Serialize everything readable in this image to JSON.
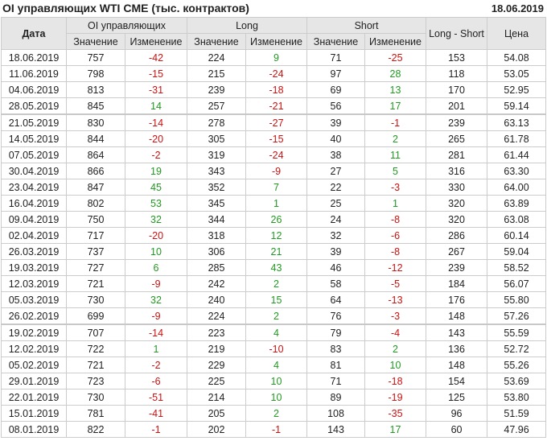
{
  "title": "OI управляющих WTI CME (тыс. контрактов)",
  "report_date": "18.06.2019",
  "colors": {
    "negative": "#cc1111",
    "positive": "#229922"
  },
  "headers": {
    "date": "Дата",
    "oi": "OI управляющих",
    "long": "Long",
    "short": "Short",
    "long_short": "Long - Short",
    "price": "Цена",
    "value": "Значение",
    "change": "Изменение"
  },
  "rows": [
    [
      "18.06.2019",
      "757",
      "-42",
      "224",
      "9",
      "71",
      "-25",
      "153",
      "54.08"
    ],
    [
      "11.06.2019",
      "798",
      "-15",
      "215",
      "-24",
      "97",
      "28",
      "118",
      "53.05"
    ],
    [
      "04.06.2019",
      "813",
      "-31",
      "239",
      "-18",
      "69",
      "13",
      "170",
      "52.95"
    ],
    [
      "28.05.2019",
      "845",
      "14",
      "257",
      "-21",
      "56",
      "17",
      "201",
      "59.14"
    ],
    [
      "21.05.2019",
      "830",
      "-14",
      "278",
      "-27",
      "39",
      "-1",
      "239",
      "63.13"
    ],
    [
      "14.05.2019",
      "844",
      "-20",
      "305",
      "-15",
      "40",
      "2",
      "265",
      "61.78"
    ],
    [
      "07.05.2019",
      "864",
      "-2",
      "319",
      "-24",
      "38",
      "11",
      "281",
      "61.44"
    ],
    [
      "30.04.2019",
      "866",
      "19",
      "343",
      "-9",
      "27",
      "5",
      "316",
      "63.30"
    ],
    [
      "23.04.2019",
      "847",
      "45",
      "352",
      "7",
      "22",
      "-3",
      "330",
      "64.00"
    ],
    [
      "16.04.2019",
      "802",
      "53",
      "345",
      "1",
      "25",
      "1",
      "320",
      "63.89"
    ],
    [
      "09.04.2019",
      "750",
      "32",
      "344",
      "26",
      "24",
      "-8",
      "320",
      "63.08"
    ],
    [
      "02.04.2019",
      "717",
      "-20",
      "318",
      "12",
      "32",
      "-6",
      "286",
      "60.14"
    ],
    [
      "26.03.2019",
      "737",
      "10",
      "306",
      "21",
      "39",
      "-8",
      "267",
      "59.04"
    ],
    [
      "19.03.2019",
      "727",
      "6",
      "285",
      "43",
      "46",
      "-12",
      "239",
      "58.52"
    ],
    [
      "12.03.2019",
      "721",
      "-9",
      "242",
      "2",
      "58",
      "-5",
      "184",
      "56.07"
    ],
    [
      "05.03.2019",
      "730",
      "32",
      "240",
      "15",
      "64",
      "-13",
      "176",
      "55.80"
    ],
    [
      "26.02.2019",
      "699",
      "-9",
      "224",
      "2",
      "76",
      "-3",
      "148",
      "57.26"
    ],
    [
      "19.02.2019",
      "707",
      "-14",
      "223",
      "4",
      "79",
      "-4",
      "143",
      "55.59"
    ],
    [
      "12.02.2019",
      "722",
      "1",
      "219",
      "-10",
      "83",
      "2",
      "136",
      "52.72"
    ],
    [
      "05.02.2019",
      "721",
      "-2",
      "229",
      "4",
      "81",
      "10",
      "148",
      "55.26"
    ],
    [
      "29.01.2019",
      "723",
      "-6",
      "225",
      "10",
      "71",
      "-18",
      "154",
      "53.69"
    ],
    [
      "22.01.2019",
      "730",
      "-51",
      "214",
      "10",
      "89",
      "-19",
      "125",
      "53.80"
    ],
    [
      "15.01.2019",
      "781",
      "-41",
      "205",
      "2",
      "108",
      "-35",
      "96",
      "51.59"
    ],
    [
      "08.01.2019",
      "822",
      "-1",
      "202",
      "-1",
      "143",
      "17",
      "60",
      "47.96"
    ]
  ]
}
